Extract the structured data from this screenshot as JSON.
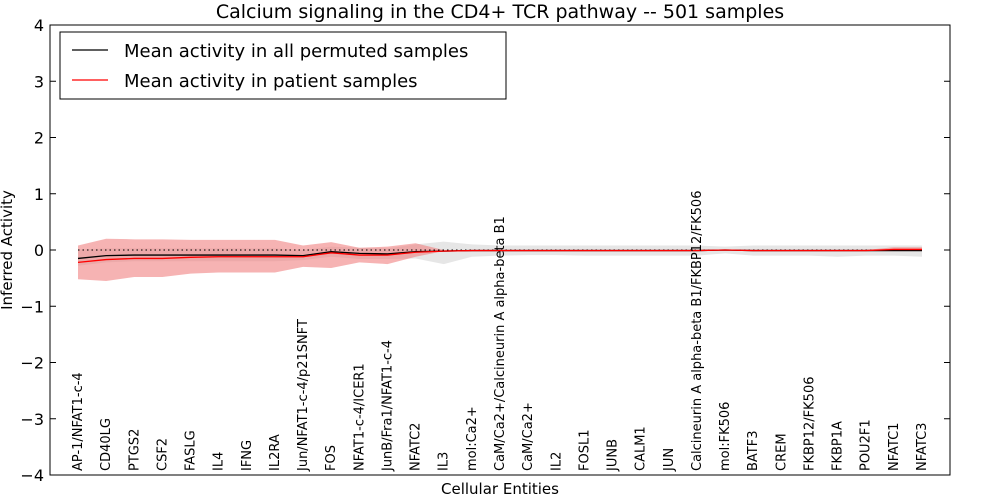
{
  "chart_data": {
    "type": "line",
    "title": "Calcium signaling in the CD4+ TCR pathway -- 501 samples",
    "xlabel": "Cellular Entities",
    "ylabel": "Inferred Activity",
    "ylim": [
      -4,
      4
    ],
    "yticks": [
      4,
      3,
      2,
      1,
      0,
      -1,
      -2,
      -3,
      -4
    ],
    "ytick_labels": [
      "4",
      "3",
      "2",
      "1",
      "0",
      "−1",
      "−2",
      "−3",
      "−4"
    ],
    "legend_position": "top-left",
    "categories": [
      "AP-1/NFAT1-c-4",
      "CD40LG",
      "PTGS2",
      "CSF2",
      "FASLG",
      "IL4",
      "IFNG",
      "IL2RA",
      "Jun/NFAT1-c-4/p21SNFT",
      "FOS",
      "NFAT1-c-4/ICER1",
      "JunB/Fra1/NFAT1-c-4",
      "NFATC2",
      "IL3",
      "mol:Ca2+",
      "CaM/Ca2+/Calcineurin A alpha-beta B1",
      "CaM/Ca2+",
      "IL2",
      "FOSL1",
      "JUNB",
      "CALM1",
      "JUN",
      "Calcineurin A alpha-beta B1/FKBP12/FK506",
      "mol:FK506",
      "BATF3",
      "CREM",
      "FKBP12/FK506",
      "FKBP1A",
      "POU2F1",
      "NFATC1",
      "NFATC3"
    ],
    "series": [
      {
        "name": "Mean activity in all permuted samples",
        "color": "#000000",
        "values": [
          -0.15,
          -0.1,
          -0.09,
          -0.09,
          -0.09,
          -0.09,
          -0.09,
          -0.09,
          -0.1,
          -0.03,
          -0.06,
          -0.07,
          -0.03,
          -0.02,
          -0.01,
          -0.01,
          -0.01,
          -0.01,
          -0.01,
          -0.01,
          -0.01,
          -0.01,
          -0.01,
          0.0,
          -0.01,
          -0.01,
          -0.01,
          -0.01,
          -0.01,
          -0.01,
          -0.01
        ],
        "band_lower": [
          -0.28,
          -0.22,
          -0.2,
          -0.2,
          -0.2,
          -0.2,
          -0.2,
          -0.2,
          -0.18,
          -0.12,
          -0.16,
          -0.16,
          -0.15,
          -0.25,
          -0.12,
          -0.1,
          -0.09,
          -0.09,
          -0.1,
          -0.1,
          -0.1,
          -0.1,
          -0.1,
          -0.06,
          -0.1,
          -0.1,
          -0.1,
          -0.12,
          -0.1,
          -0.1,
          -0.12
        ],
        "band_upper": [
          0.01,
          0.03,
          0.03,
          0.03,
          0.03,
          0.03,
          0.03,
          0.03,
          0.0,
          0.06,
          0.04,
          0.03,
          0.1,
          0.15,
          0.1,
          0.08,
          0.08,
          0.08,
          0.08,
          0.08,
          0.08,
          0.08,
          0.08,
          0.06,
          0.08,
          0.08,
          0.08,
          0.08,
          0.08,
          0.08,
          0.08
        ]
      },
      {
        "name": "Mean activity in patient samples",
        "color": "#ff0000",
        "fill": "#f08080",
        "values": [
          -0.22,
          -0.17,
          -0.15,
          -0.15,
          -0.13,
          -0.12,
          -0.12,
          -0.12,
          -0.12,
          -0.05,
          -0.09,
          -0.09,
          -0.04,
          -0.02,
          -0.01,
          -0.01,
          -0.01,
          -0.01,
          -0.01,
          -0.01,
          -0.01,
          -0.01,
          -0.01,
          0.0,
          -0.01,
          -0.01,
          -0.01,
          -0.01,
          -0.01,
          0.01,
          0.01
        ],
        "band_lower": [
          -0.52,
          -0.55,
          -0.48,
          -0.48,
          -0.42,
          -0.4,
          -0.4,
          -0.4,
          -0.3,
          -0.32,
          -0.22,
          -0.25,
          -0.12,
          -0.02,
          -0.01,
          -0.01,
          -0.01,
          -0.01,
          -0.01,
          -0.01,
          -0.01,
          -0.01,
          -0.01,
          0.0,
          -0.01,
          -0.01,
          -0.01,
          -0.01,
          -0.01,
          -0.01,
          -0.01
        ],
        "band_upper": [
          0.08,
          0.2,
          0.19,
          0.19,
          0.18,
          0.18,
          0.18,
          0.18,
          0.08,
          0.14,
          0.04,
          0.06,
          0.12,
          0.0,
          0.0,
          0.0,
          0.0,
          0.0,
          0.0,
          0.0,
          0.0,
          0.0,
          0.0,
          0.0,
          0.0,
          0.0,
          0.0,
          0.0,
          0.0,
          0.05,
          0.05
        ]
      }
    ],
    "reference_line": {
      "value": 0,
      "style": "dotted"
    }
  }
}
